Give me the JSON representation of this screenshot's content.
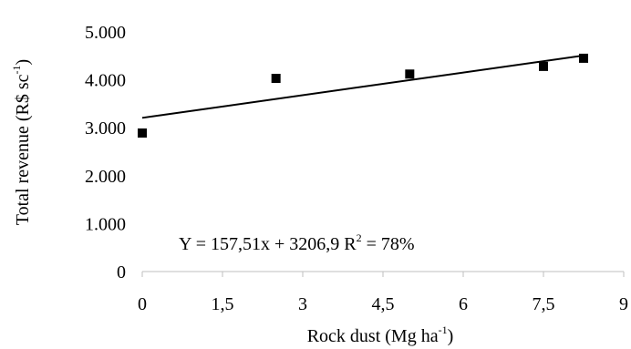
{
  "chart_data": {
    "type": "scatter",
    "x": [
      0,
      2.5,
      5,
      7.5,
      8.25
    ],
    "y": [
      2890,
      4030,
      4120,
      4280,
      4450
    ],
    "xlim": [
      0,
      9
    ],
    "ylim": [
      0,
      5000
    ],
    "xticks": [
      0,
      1.5,
      3,
      4.5,
      6,
      7.5,
      9
    ],
    "xtick_labels": [
      "0",
      "1,5",
      "3",
      "4,5",
      "6",
      "7,5",
      "9"
    ],
    "yticks": [
      0,
      1000,
      2000,
      3000,
      4000,
      5000
    ],
    "ytick_labels": [
      "0",
      "1.000",
      "2.000",
      "3.000",
      "4.000",
      "5.000"
    ],
    "xlabel": "Rock dust (Mg ha",
    "xlabel_sup": "-1",
    "xlabel_end": ")",
    "ylabel": "Total revenue (R$ sc",
    "ylabel_sup": "-1",
    "ylabel_end": ")",
    "trendline": {
      "slope": 157.51,
      "intercept": 3206.9,
      "x_range": [
        0,
        8.25
      ]
    },
    "equation": "Y = 157,51x + 3206,9  R",
    "equation_sup": "2",
    "equation_end": " = 78%",
    "grid": false,
    "marker": "square",
    "marker_color": "#000000"
  }
}
